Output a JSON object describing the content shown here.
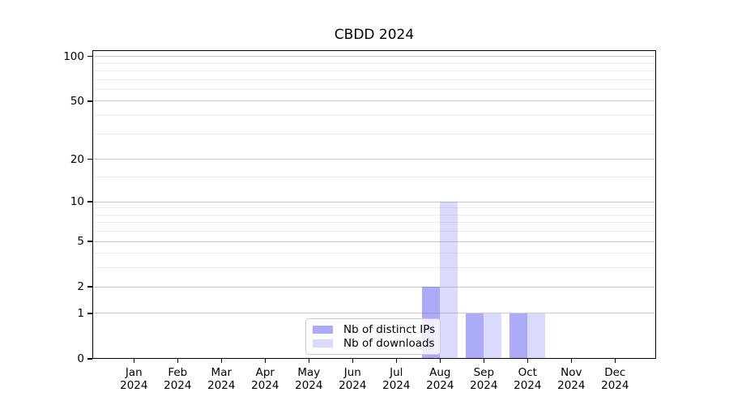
{
  "chart_data": {
    "type": "bar",
    "title": "CBDD 2024",
    "categories": [
      "Jan 2024",
      "Feb 2024",
      "Mar 2024",
      "Apr 2024",
      "May 2024",
      "Jun 2024",
      "Jul 2024",
      "Aug 2024",
      "Sep 2024",
      "Oct 2024",
      "Nov 2024",
      "Dec 2024"
    ],
    "series": [
      {
        "name": "Nb of distinct IPs",
        "values": [
          0,
          0,
          0,
          0,
          0,
          0,
          0,
          2,
          1,
          1,
          0,
          0
        ],
        "color": "rgba(88,88,240,0.5)",
        "solid_color": "#abaaf7"
      },
      {
        "name": "Nb of downloads",
        "values": [
          0,
          0,
          0,
          0,
          0,
          0,
          0,
          10,
          1,
          1,
          0,
          0
        ],
        "color": "rgba(88,88,240,0.22)",
        "solid_color": "#dadaf9"
      }
    ],
    "xlabel": "",
    "ylabel": "",
    "y_scale": "log10(1+x)",
    "y_ticks": [
      0,
      1,
      2,
      5,
      10,
      20,
      50,
      100
    ],
    "y_minor_gridlines": [
      3,
      4,
      6,
      7,
      8,
      9,
      15,
      30,
      40,
      60,
      70,
      80,
      90
    ],
    "ylim": [
      0,
      110
    ],
    "grid": "horizontal",
    "legend_position": "inside-bottom-center"
  },
  "colors": {
    "background": "#ffffff",
    "bar_distinct_ips": "#abaaf7",
    "bar_downloads": "#dadaf9",
    "grid_major": "#cccccc",
    "grid_minor": "#ededed",
    "axis": "#000000",
    "text": "#000000",
    "legend_border": "#cccccc"
  }
}
